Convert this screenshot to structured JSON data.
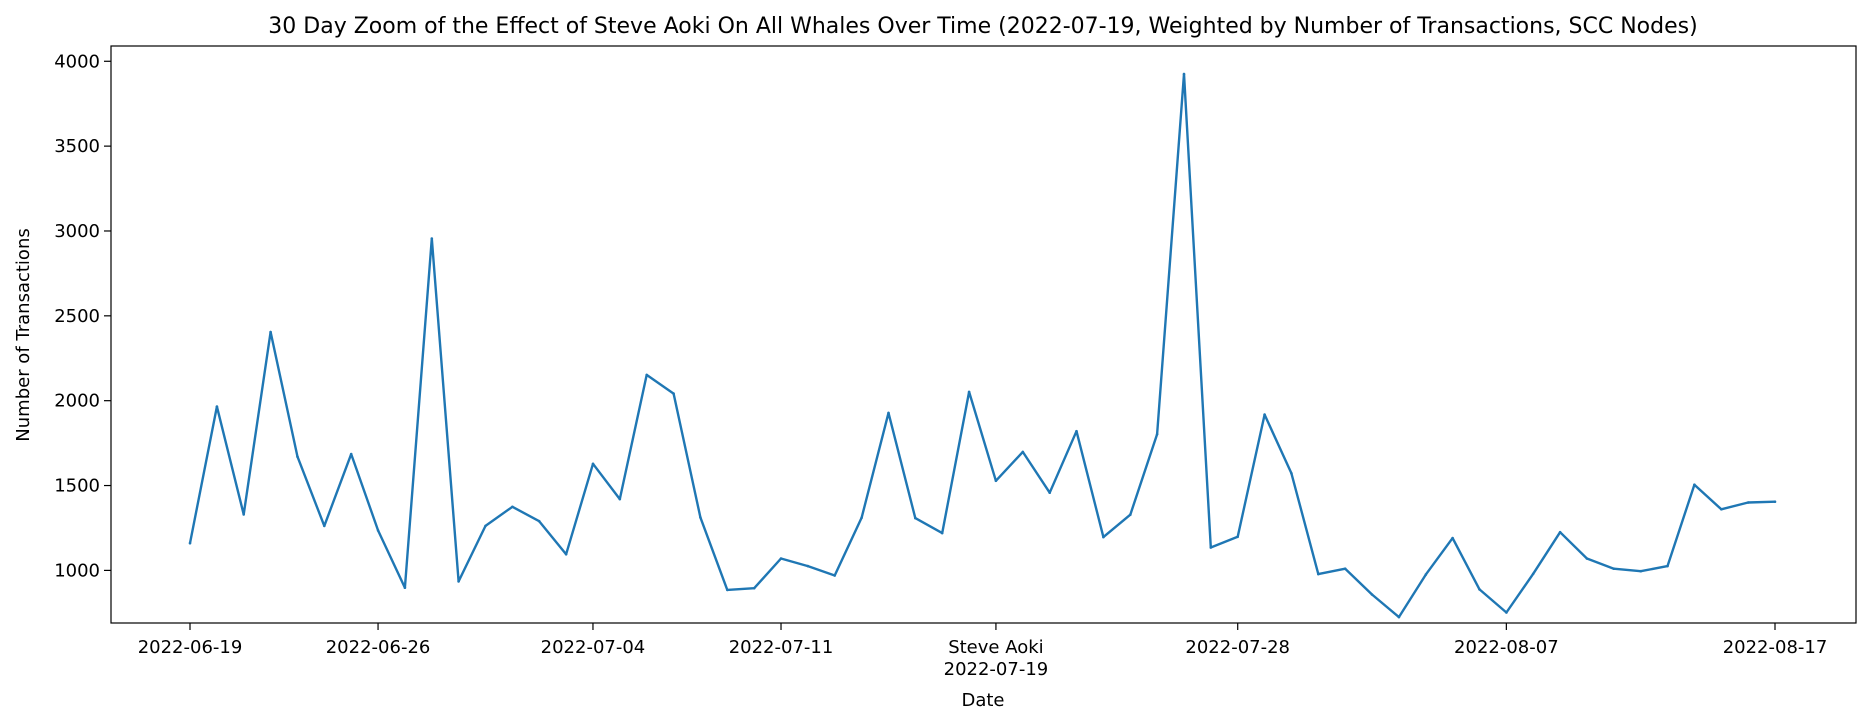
{
  "chart_data": {
    "type": "line",
    "title": "30 Day Zoom of the Effect of Steve Aoki On All Whales Over Time (2022-07-19, Weighted by Number of Transactions, SCC Nodes)",
    "xlabel": "Date",
    "ylabel": "Number of Transactions",
    "ylim": [
      690,
      4090
    ],
    "yticks": [
      1000,
      1500,
      2000,
      2500,
      3000,
      3500,
      4000
    ],
    "xticks": [
      {
        "date": "2022-06-19",
        "label": "2022-06-19"
      },
      {
        "date": "2022-06-26",
        "label": "2022-06-26"
      },
      {
        "date": "2022-07-04",
        "label": "2022-07-04"
      },
      {
        "date": "2022-07-11",
        "label": "2022-07-11"
      },
      {
        "date": "2022-07-19",
        "label": "Steve Aoki\n2022-07-19"
      },
      {
        "date": "2022-07-28",
        "label": "2022-07-28"
      },
      {
        "date": "2022-08-07",
        "label": "2022-08-07"
      },
      {
        "date": "2022-08-17",
        "label": "2022-08-17"
      }
    ],
    "grid": false,
    "line_color": "#1f77b4",
    "series": [
      {
        "points": [
          [
            "2022-06-19",
            1160
          ],
          [
            "2022-06-20",
            1965
          ],
          [
            "2022-06-21",
            1330
          ],
          [
            "2022-06-22",
            2405
          ],
          [
            "2022-06-23",
            1670
          ],
          [
            "2022-06-24",
            1262
          ],
          [
            "2022-06-25",
            1685
          ],
          [
            "2022-06-26",
            1235
          ],
          [
            "2022-06-27",
            898
          ],
          [
            "2022-06-28",
            2955
          ],
          [
            "2022-06-29",
            935
          ],
          [
            "2022-06-30",
            1262
          ],
          [
            "2022-07-01",
            1375
          ],
          [
            "2022-07-02",
            1290
          ],
          [
            "2022-07-03",
            1095
          ],
          [
            "2022-07-04",
            1628
          ],
          [
            "2022-07-05",
            1420
          ],
          [
            "2022-07-06",
            2152
          ],
          [
            "2022-07-07",
            2042
          ],
          [
            "2022-07-08",
            1312
          ],
          [
            "2022-07-09",
            885
          ],
          [
            "2022-07-10",
            895
          ],
          [
            "2022-07-11",
            1070
          ],
          [
            "2022-07-12",
            1025
          ],
          [
            "2022-07-13",
            970
          ],
          [
            "2022-07-14",
            1310
          ],
          [
            "2022-07-15",
            1928
          ],
          [
            "2022-07-16",
            1308
          ],
          [
            "2022-07-17",
            1220
          ],
          [
            "2022-07-18",
            2052
          ],
          [
            "2022-07-19",
            1528
          ],
          [
            "2022-07-20",
            1698
          ],
          [
            "2022-07-21",
            1458
          ],
          [
            "2022-07-22",
            1820
          ],
          [
            "2022-07-23",
            1196
          ],
          [
            "2022-07-24",
            1328
          ],
          [
            "2022-07-25",
            1802
          ],
          [
            "2022-07-26",
            3925
          ],
          [
            "2022-07-27",
            1135
          ],
          [
            "2022-07-28",
            1198
          ],
          [
            "2022-07-29",
            1918
          ],
          [
            "2022-07-30",
            1572
          ],
          [
            "2022-07-31",
            978
          ],
          [
            "2022-08-01",
            1010
          ],
          [
            "2022-08-02",
            858
          ],
          [
            "2022-08-03",
            725
          ],
          [
            "2022-08-04",
            975
          ],
          [
            "2022-08-05",
            1190
          ],
          [
            "2022-08-06",
            888
          ],
          [
            "2022-08-07",
            752
          ],
          [
            "2022-08-08",
            980
          ],
          [
            "2022-08-09",
            1225
          ],
          [
            "2022-08-10",
            1070
          ],
          [
            "2022-08-11",
            1010
          ],
          [
            "2022-08-12",
            995
          ],
          [
            "2022-08-13",
            1025
          ],
          [
            "2022-08-14",
            1505
          ],
          [
            "2022-08-15",
            1360
          ],
          [
            "2022-08-16",
            1400
          ],
          [
            "2022-08-17",
            1405
          ]
        ]
      }
    ]
  }
}
